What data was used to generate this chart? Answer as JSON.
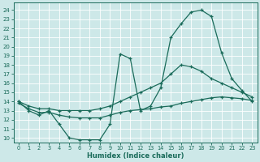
{
  "xlabel": "Humidex (Indice chaleur)",
  "bg_color": "#cde8e8",
  "grid_color": "#b8d8d8",
  "line_color": "#1a6b5a",
  "xlim": [
    -0.5,
    23.5
  ],
  "ylim": [
    9.5,
    24.8
  ],
  "yticks": [
    10,
    11,
    12,
    13,
    14,
    15,
    16,
    17,
    18,
    19,
    20,
    21,
    22,
    23,
    24
  ],
  "xticks": [
    0,
    1,
    2,
    3,
    4,
    5,
    6,
    7,
    8,
    9,
    10,
    11,
    12,
    13,
    14,
    15,
    16,
    17,
    18,
    19,
    20,
    21,
    22,
    23
  ],
  "curve1_x": [
    0,
    1,
    2,
    3,
    4,
    5,
    6,
    7,
    8,
    9,
    10,
    11,
    12,
    13,
    14,
    15,
    16,
    17,
    18,
    19,
    20,
    21,
    22,
    23
  ],
  "curve1_y": [
    14.0,
    13.0,
    12.5,
    13.0,
    11.5,
    10.0,
    9.8,
    9.8,
    9.8,
    11.5,
    19.2,
    18.7,
    13.0,
    13.5,
    15.5,
    21.0,
    22.5,
    23.8,
    24.0,
    23.3,
    19.3,
    16.5,
    15.2,
    14.0
  ],
  "curve2_x": [
    0,
    1,
    2,
    3,
    4,
    5,
    6,
    7,
    8,
    9,
    10,
    11,
    12,
    13,
    14,
    15,
    16,
    17,
    18,
    19,
    20,
    21,
    22,
    23
  ],
  "curve2_y": [
    14.0,
    13.5,
    13.2,
    13.2,
    13.0,
    13.0,
    13.0,
    13.0,
    13.2,
    13.5,
    14.0,
    14.5,
    15.0,
    15.5,
    16.0,
    17.0,
    18.0,
    17.8,
    17.3,
    16.5,
    16.0,
    15.5,
    15.0,
    14.5
  ],
  "curve3_x": [
    0,
    1,
    2,
    3,
    4,
    5,
    6,
    7,
    8,
    9,
    10,
    11,
    12,
    13,
    14,
    15,
    16,
    17,
    18,
    19,
    20,
    21,
    22,
    23
  ],
  "curve3_y": [
    13.8,
    13.2,
    12.8,
    12.8,
    12.5,
    12.3,
    12.2,
    12.2,
    12.2,
    12.5,
    12.8,
    13.0,
    13.1,
    13.2,
    13.4,
    13.5,
    13.8,
    14.0,
    14.2,
    14.4,
    14.5,
    14.4,
    14.3,
    14.1
  ]
}
